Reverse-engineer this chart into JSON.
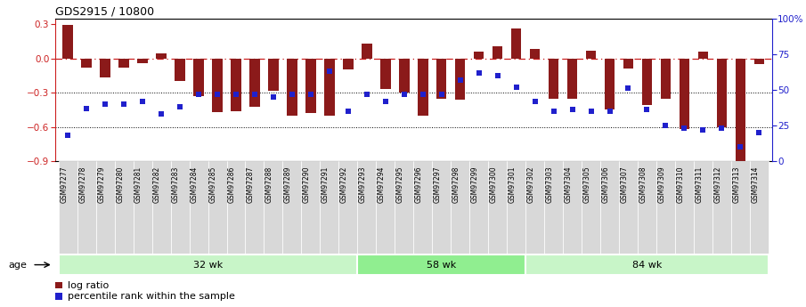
{
  "title": "GDS2915 / 10800",
  "samples": [
    "GSM97277",
    "GSM97278",
    "GSM97279",
    "GSM97280",
    "GSM97281",
    "GSM97282",
    "GSM97283",
    "GSM97284",
    "GSM97285",
    "GSM97286",
    "GSM97287",
    "GSM97288",
    "GSM97289",
    "GSM97290",
    "GSM97291",
    "GSM97292",
    "GSM97293",
    "GSM97294",
    "GSM97295",
    "GSM97296",
    "GSM97297",
    "GSM97298",
    "GSM97299",
    "GSM97300",
    "GSM97301",
    "GSM97302",
    "GSM97303",
    "GSM97304",
    "GSM97305",
    "GSM97306",
    "GSM97307",
    "GSM97308",
    "GSM97309",
    "GSM97310",
    "GSM97311",
    "GSM97312",
    "GSM97313",
    "GSM97314"
  ],
  "log_ratio": [
    0.29,
    -0.08,
    -0.17,
    -0.08,
    -0.04,
    0.04,
    -0.2,
    -0.33,
    -0.47,
    -0.46,
    -0.42,
    -0.28,
    -0.5,
    -0.48,
    -0.5,
    -0.1,
    0.13,
    -0.27,
    -0.3,
    -0.5,
    -0.35,
    -0.36,
    0.06,
    0.11,
    0.26,
    0.08,
    -0.35,
    -0.35,
    0.07,
    -0.45,
    -0.09,
    -0.41,
    -0.35,
    -0.62,
    0.06,
    -0.6,
    -0.9,
    -0.05
  ],
  "percentile_rank": [
    18,
    37,
    40,
    40,
    42,
    33,
    38,
    47,
    47,
    47,
    47,
    45,
    47,
    47,
    63,
    35,
    47,
    42,
    47,
    47,
    47,
    57,
    62,
    60,
    52,
    42,
    35,
    36,
    35,
    35,
    51,
    36,
    25,
    23,
    22,
    23,
    10,
    20
  ],
  "groups": [
    {
      "label": "32 wk",
      "start": 0,
      "end": 16
    },
    {
      "label": "58 wk",
      "start": 16,
      "end": 25
    },
    {
      "label": "84 wk",
      "start": 25,
      "end": 38
    }
  ],
  "group_colors": [
    "#c8f5c8",
    "#90ee90",
    "#c8f5c8"
  ],
  "ylim_left": [
    -0.9,
    0.35
  ],
  "ylim_right": [
    0,
    100
  ],
  "yticks_left": [
    -0.9,
    -0.6,
    -0.3,
    0.0,
    0.3
  ],
  "yticks_right": [
    0,
    25,
    50,
    75,
    100
  ],
  "bar_color": "#8B1a1a",
  "dot_color": "#2020cc",
  "hline_color": "#cc2020",
  "dotline1": -0.3,
  "dotline2": -0.6,
  "legend_log_ratio": "log ratio",
  "legend_percentile": "percentile rank within the sample",
  "age_label": "age",
  "background_color": "#ffffff",
  "xtick_bg": "#d8d8d8"
}
